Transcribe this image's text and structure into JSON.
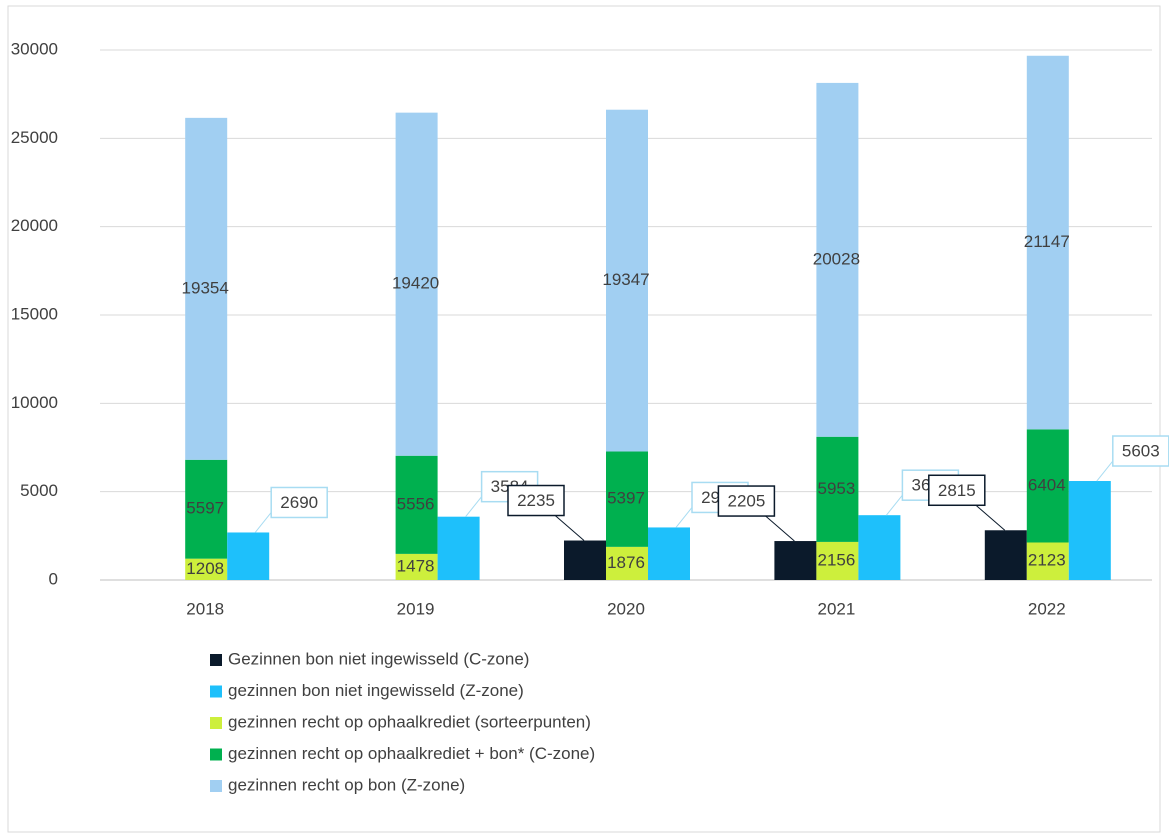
{
  "chart_data": {
    "type": "bar",
    "categories": [
      "2018",
      "2019",
      "2020",
      "2021",
      "2022"
    ],
    "series": [
      {
        "name": "Gezinnen bon niet ingewisseld (C-zone)",
        "color": "#0b1a2b",
        "values": [
          null,
          null,
          2235,
          2205,
          2815
        ]
      },
      {
        "name": "gezinnen bon niet ingewisseld (Z-zone)",
        "color": "#1ec0fb",
        "values": [
          2690,
          3584,
          2975,
          3669,
          5603
        ]
      },
      {
        "name": "gezinnen recht op ophaalkrediet (sorteerpunten)",
        "color": "#cdef3c",
        "values": [
          1208,
          1478,
          1876,
          2156,
          2123
        ]
      },
      {
        "name": "gezinnen recht op ophaalkrediet + bon* (C-zone)",
        "color": "#00b04f",
        "values": [
          5597,
          5556,
          5397,
          5953,
          6404
        ]
      },
      {
        "name": "gezinnen recht op bon (Z-zone)",
        "color": "#a1cff2",
        "values": [
          19354,
          19420,
          19347,
          20028,
          21147
        ]
      }
    ],
    "ylim": [
      0,
      30000
    ],
    "yticks": [
      0,
      5000,
      10000,
      15000,
      20000,
      25000,
      30000
    ],
    "grid": true
  }
}
